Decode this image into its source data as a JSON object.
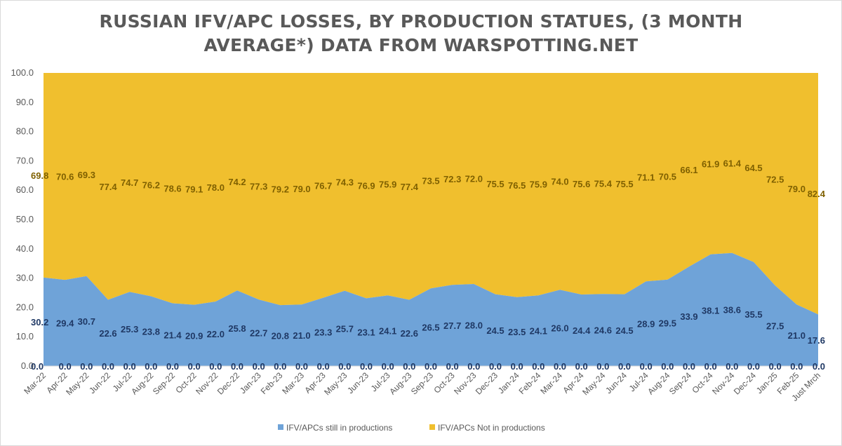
{
  "chart_data": {
    "type": "area",
    "stacked": true,
    "title_lines": [
      "RUSSIAN IFV/APC LOSSES, BY PRODUCTION STATUES, (3 MONTH",
      "AVERAGE*) DATA FROM WARSPOTTING.NET"
    ],
    "xlabel": "",
    "ylabel": "",
    "ylim": [
      0,
      100
    ],
    "yticks": [
      "0.0",
      "10.0",
      "20.0",
      "30.0",
      "40.0",
      "50.0",
      "60.0",
      "70.0",
      "80.0",
      "90.0",
      "100.0"
    ],
    "categories": [
      "Mar-22",
      "Apr-22",
      "May-22",
      "Jun-22",
      "Jul-22",
      "Aug-22",
      "Sep-22",
      "Oct-22",
      "Nov-22",
      "Dec-22",
      "Jan-23",
      "Feb-23",
      "Mar-23",
      "Apr-23",
      "May-23",
      "Jun-23",
      "Jul-23",
      "Aug-23",
      "Sep-23",
      "Oct-23",
      "Nov-23",
      "Dec-23",
      "Jan-24",
      "Feb-24",
      "Mar-24",
      "Apr-24",
      "May-24",
      "Jun-24",
      "Jul-24",
      "Aug-24",
      "Sep-24",
      "Oct-24",
      "Nov-24",
      "Dec-24",
      "Jan-25",
      "Feb-25",
      "Just Mrch"
    ],
    "series": [
      {
        "name": "IFV/APCs still in productions",
        "color": "#6fa3d8",
        "values": [
          30.2,
          29.4,
          30.7,
          22.6,
          25.3,
          23.8,
          21.4,
          20.9,
          22.0,
          25.8,
          22.7,
          20.8,
          21.0,
          23.3,
          25.7,
          23.1,
          24.1,
          22.6,
          26.5,
          27.7,
          28.0,
          24.5,
          23.5,
          24.1,
          26.0,
          24.4,
          24.6,
          24.5,
          28.9,
          29.5,
          33.9,
          38.1,
          38.6,
          35.5,
          27.5,
          21.0,
          17.6
        ],
        "labels": [
          "30.2",
          "29.4",
          "30.7",
          "22.6",
          "25.3",
          "23.8",
          "21.4",
          "20.9",
          "22.0",
          "25.8",
          "22.7",
          "20.8",
          "21.0",
          "23.3",
          "25.7",
          "23.1",
          "24.1",
          "22.6",
          "26.5",
          "27.7",
          "28.0",
          "24.5",
          "23.5",
          "24.1",
          "26.0",
          "24.4",
          "24.6",
          "24.5",
          "28.9",
          "29.5",
          "33.9",
          "38.1",
          "38.6",
          "35.5",
          "27.5",
          "21.0",
          "17.6"
        ]
      },
      {
        "name": "IFV/APCs Not in productions",
        "color": "#f0bf2e",
        "values": [
          69.8,
          70.6,
          69.3,
          77.4,
          74.7,
          76.2,
          78.6,
          79.1,
          78.0,
          74.2,
          77.3,
          79.2,
          79.0,
          76.7,
          74.3,
          76.9,
          75.9,
          77.4,
          73.5,
          72.3,
          72.0,
          75.5,
          76.5,
          75.9,
          74.0,
          75.6,
          75.4,
          75.5,
          71.1,
          70.5,
          66.1,
          61.9,
          61.4,
          64.5,
          72.5,
          79.0,
          82.4
        ],
        "labels": [
          "69.8",
          "70.6",
          "69.3",
          "77.4",
          "74.7",
          "76.2",
          "78.6",
          "79.1",
          "78.0",
          "74.2",
          "77.3",
          "79.2",
          "79.0",
          "76.7",
          "74.3",
          "76.9",
          "75.9",
          "77.4",
          "73.5",
          "72.3",
          "72.0",
          "75.5",
          "76.5",
          "75.9",
          "74.0",
          "75.6",
          "75.4",
          "75.5",
          "71.1",
          "70.5",
          "66.1",
          "61.9",
          "61.4",
          "64.5",
          "72.5",
          "79.0",
          "82.4"
        ]
      }
    ],
    "zero_labels": [
      "0.0",
      "0.0",
      "0.0",
      "0.0",
      "0.0",
      "0.0",
      "0.0",
      "0.0",
      "0.0",
      "0.0",
      "0.0",
      "0.0",
      "0.0",
      "0.0",
      "0.0",
      "0.0",
      "0.0",
      "0.0",
      "0.0",
      "0.0",
      "0.0",
      "0.0",
      "0.0",
      "0.0",
      "0.0",
      "0.0",
      "0.0",
      "0.0",
      "0.0",
      "0.0",
      "0.0",
      "0.0",
      "0.0",
      "0.0",
      "0.0",
      "0.0",
      "0.0"
    ],
    "legend": [
      "IFV/APCs still in productions",
      "IFV/APCs Not in productions"
    ],
    "legend_position": "bottom",
    "grid": false
  }
}
